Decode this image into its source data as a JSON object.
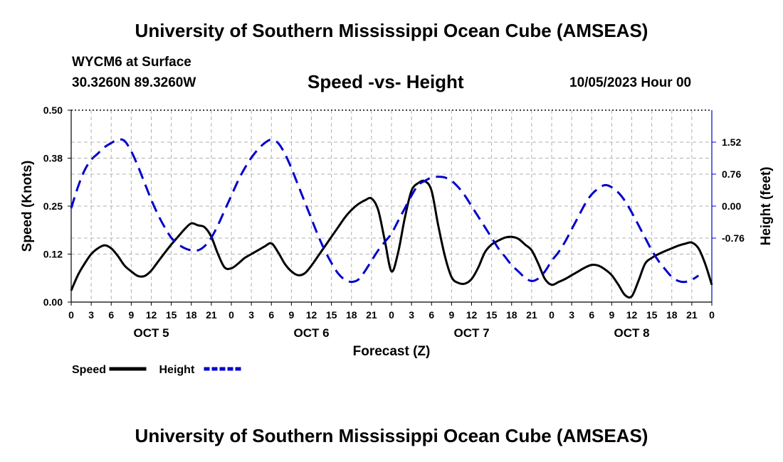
{
  "header": {
    "title": "University of Southern Mississippi Ocean Cube (AMSEAS)",
    "station": "WYCM6 at Surface",
    "coords": "30.3260N  89.3260W",
    "subtitle": "Speed -vs- Height",
    "datetime": "10/05/2023 Hour 00"
  },
  "footer": {
    "title": "University of Southern Mississippi Ocean Cube (AMSEAS)"
  },
  "chart_data": {
    "type": "line",
    "xlabel": "Forecast (Z)",
    "ylabel_left": "Speed (Knots)",
    "ylabel_right": "Height (feet)",
    "x_range_hours": [
      0,
      96
    ],
    "x_ticks": [
      0,
      3,
      6,
      9,
      12,
      15,
      18,
      21,
      24,
      27,
      30,
      33,
      36,
      39,
      42,
      45,
      48,
      51,
      54,
      57,
      60,
      63,
      66,
      69,
      72,
      75,
      78,
      81,
      84,
      87,
      90,
      93,
      96
    ],
    "x_tick_labels": [
      "0",
      "3",
      "6",
      "9",
      "12",
      "15",
      "18",
      "21",
      "0",
      "3",
      "6",
      "9",
      "12",
      "15",
      "18",
      "21",
      "0",
      "3",
      "6",
      "9",
      "12",
      "15",
      "18",
      "21",
      "0",
      "3",
      "6",
      "9",
      "12",
      "15",
      "18",
      "21",
      "0"
    ],
    "days": [
      {
        "label": "OCT 5",
        "center_hour": 12
      },
      {
        "label": "OCT 6",
        "center_hour": 36
      },
      {
        "label": "OCT 7",
        "center_hour": 60
      },
      {
        "label": "OCT 8",
        "center_hour": 84
      }
    ],
    "ylim_left": [
      0,
      0.5
    ],
    "yticks_left": [
      0,
      0.125,
      0.25,
      0.375,
      0.5
    ],
    "ytick_labels_left": [
      "0.00",
      "0.12",
      "0.25",
      "0.38",
      "0.50"
    ],
    "ylim_right": [
      -2.28,
      2.28
    ],
    "yticks_right": [
      -0.76,
      0,
      0.76,
      1.52
    ],
    "ytick_labels_right": [
      "-0.76",
      "0.00",
      "0.76",
      "1.52"
    ],
    "grid": true,
    "series": [
      {
        "name": "Speed",
        "axis": "left",
        "color": "#000000",
        "style": "solid",
        "points": [
          [
            0,
            0.03
          ],
          [
            1,
            0.07
          ],
          [
            2,
            0.1
          ],
          [
            3,
            0.125
          ],
          [
            4,
            0.14
          ],
          [
            5,
            0.148
          ],
          [
            6,
            0.14
          ],
          [
            7,
            0.12
          ],
          [
            8,
            0.095
          ],
          [
            9,
            0.08
          ],
          [
            10,
            0.068
          ],
          [
            11,
            0.068
          ],
          [
            12,
            0.082
          ],
          [
            13,
            0.105
          ],
          [
            14,
            0.128
          ],
          [
            15,
            0.15
          ],
          [
            16,
            0.17
          ],
          [
            17,
            0.19
          ],
          [
            18,
            0.205
          ],
          [
            19,
            0.2
          ],
          [
            20,
            0.195
          ],
          [
            21,
            0.17
          ],
          [
            22,
            0.125
          ],
          [
            23,
            0.09
          ],
          [
            24,
            0.088
          ],
          [
            25,
            0.1
          ],
          [
            26,
            0.115
          ],
          [
            27,
            0.125
          ],
          [
            28,
            0.135
          ],
          [
            29,
            0.145
          ],
          [
            30,
            0.153
          ],
          [
            31,
            0.13
          ],
          [
            32,
            0.1
          ],
          [
            33,
            0.08
          ],
          [
            34,
            0.07
          ],
          [
            35,
            0.075
          ],
          [
            36,
            0.095
          ],
          [
            37,
            0.12
          ],
          [
            38,
            0.145
          ],
          [
            39,
            0.17
          ],
          [
            40,
            0.195
          ],
          [
            41,
            0.22
          ],
          [
            42,
            0.24
          ],
          [
            43,
            0.255
          ],
          [
            44,
            0.265
          ],
          [
            45,
            0.27
          ],
          [
            46,
            0.24
          ],
          [
            47,
            0.16
          ],
          [
            48,
            0.08
          ],
          [
            49,
            0.13
          ],
          [
            50,
            0.22
          ],
          [
            51,
            0.29
          ],
          [
            52,
            0.31
          ],
          [
            53,
            0.315
          ],
          [
            54,
            0.29
          ],
          [
            55,
            0.2
          ],
          [
            56,
            0.12
          ],
          [
            57,
            0.065
          ],
          [
            58,
            0.05
          ],
          [
            59,
            0.048
          ],
          [
            60,
            0.06
          ],
          [
            61,
            0.09
          ],
          [
            62,
            0.13
          ],
          [
            63,
            0.15
          ],
          [
            64,
            0.16
          ],
          [
            65,
            0.168
          ],
          [
            66,
            0.17
          ],
          [
            67,
            0.165
          ],
          [
            68,
            0.15
          ],
          [
            69,
            0.135
          ],
          [
            70,
            0.1
          ],
          [
            71,
            0.06
          ],
          [
            72,
            0.045
          ],
          [
            73,
            0.052
          ],
          [
            74,
            0.06
          ],
          [
            75,
            0.07
          ],
          [
            76,
            0.08
          ],
          [
            77,
            0.09
          ],
          [
            78,
            0.097
          ],
          [
            79,
            0.095
          ],
          [
            80,
            0.085
          ],
          [
            81,
            0.07
          ],
          [
            82,
            0.045
          ],
          [
            83,
            0.018
          ],
          [
            84,
            0.015
          ],
          [
            85,
            0.055
          ],
          [
            86,
            0.1
          ],
          [
            87,
            0.115
          ],
          [
            88,
            0.125
          ],
          [
            89,
            0.133
          ],
          [
            90,
            0.14
          ],
          [
            91,
            0.147
          ],
          [
            92,
            0.152
          ],
          [
            93,
            0.155
          ],
          [
            94,
            0.14
          ],
          [
            95,
            0.1
          ],
          [
            96,
            0.045
          ]
        ]
      },
      {
        "name": "Height",
        "axis": "right",
        "color": "#0000cc",
        "style": "dashed",
        "points": [
          [
            0,
            -0.05
          ],
          [
            1,
            0.45
          ],
          [
            2,
            0.85
          ],
          [
            3,
            1.1
          ],
          [
            4,
            1.25
          ],
          [
            5,
            1.4
          ],
          [
            6,
            1.5
          ],
          [
            7,
            1.58
          ],
          [
            8,
            1.55
          ],
          [
            9,
            1.3
          ],
          [
            10,
            0.95
          ],
          [
            11,
            0.55
          ],
          [
            12,
            0.15
          ],
          [
            13,
            -0.2
          ],
          [
            14,
            -0.5
          ],
          [
            15,
            -0.75
          ],
          [
            16,
            -0.9
          ],
          [
            17,
            -1.0
          ],
          [
            18,
            -1.05
          ],
          [
            19,
            -1.05
          ],
          [
            20,
            -0.95
          ],
          [
            21,
            -0.75
          ],
          [
            22,
            -0.45
          ],
          [
            23,
            -0.1
          ],
          [
            24,
            0.25
          ],
          [
            25,
            0.6
          ],
          [
            26,
            0.9
          ],
          [
            27,
            1.15
          ],
          [
            28,
            1.35
          ],
          [
            29,
            1.5
          ],
          [
            30,
            1.58
          ],
          [
            31,
            1.5
          ],
          [
            32,
            1.25
          ],
          [
            33,
            0.9
          ],
          [
            34,
            0.5
          ],
          [
            35,
            0.1
          ],
          [
            36,
            -0.3
          ],
          [
            37,
            -0.7
          ],
          [
            38,
            -1.05
          ],
          [
            39,
            -1.35
          ],
          [
            40,
            -1.6
          ],
          [
            41,
            -1.75
          ],
          [
            42,
            -1.8
          ],
          [
            43,
            -1.75
          ],
          [
            44,
            -1.55
          ],
          [
            45,
            -1.3
          ],
          [
            46,
            -1.05
          ],
          [
            47,
            -0.85
          ],
          [
            48,
            -0.65
          ],
          [
            49,
            -0.35
          ],
          [
            50,
            -0.05
          ],
          [
            51,
            0.25
          ],
          [
            52,
            0.5
          ],
          [
            53,
            0.6
          ],
          [
            54,
            0.68
          ],
          [
            55,
            0.7
          ],
          [
            56,
            0.68
          ],
          [
            57,
            0.6
          ],
          [
            58,
            0.45
          ],
          [
            59,
            0.25
          ],
          [
            60,
            0.0
          ],
          [
            61,
            -0.25
          ],
          [
            62,
            -0.5
          ],
          [
            63,
            -0.75
          ],
          [
            64,
            -1.0
          ],
          [
            65,
            -1.2
          ],
          [
            66,
            -1.4
          ],
          [
            67,
            -1.55
          ],
          [
            68,
            -1.7
          ],
          [
            69,
            -1.78
          ],
          [
            70,
            -1.72
          ],
          [
            71,
            -1.55
          ],
          [
            72,
            -1.3
          ],
          [
            73,
            -1.1
          ],
          [
            74,
            -0.85
          ],
          [
            75,
            -0.55
          ],
          [
            76,
            -0.25
          ],
          [
            77,
            0.05
          ],
          [
            78,
            0.28
          ],
          [
            79,
            0.42
          ],
          [
            80,
            0.5
          ],
          [
            81,
            0.45
          ],
          [
            82,
            0.32
          ],
          [
            83,
            0.12
          ],
          [
            84,
            -0.15
          ],
          [
            85,
            -0.45
          ],
          [
            86,
            -0.75
          ],
          [
            87,
            -1.05
          ],
          [
            88,
            -1.3
          ],
          [
            89,
            -1.5
          ],
          [
            90,
            -1.68
          ],
          [
            91,
            -1.78
          ],
          [
            92,
            -1.8
          ],
          [
            93,
            -1.75
          ],
          [
            94,
            -1.65
          ]
        ]
      }
    ],
    "legend": [
      {
        "label": "Speed",
        "color": "#000000",
        "style": "solid"
      },
      {
        "label": "Height",
        "color": "#0000cc",
        "style": "dashed"
      }
    ]
  }
}
